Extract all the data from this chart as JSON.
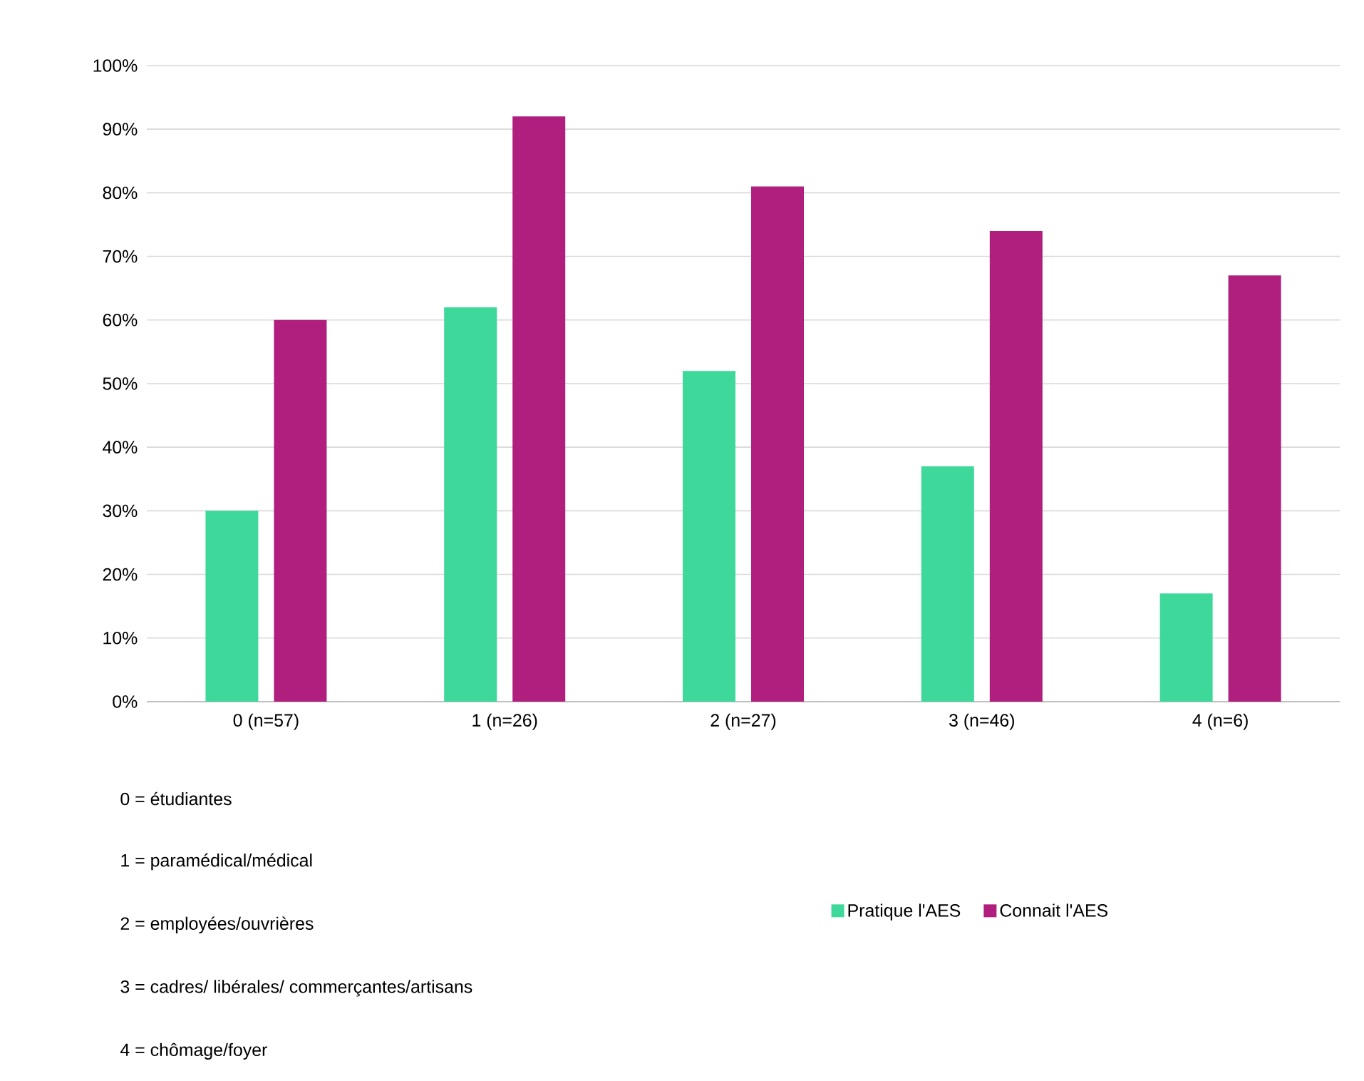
{
  "chart_data": {
    "type": "bar",
    "categories": [
      "0 (n=57)",
      "1 (n=26)",
      "2 (n=27)",
      "3 (n=46)",
      "4 (n=6)"
    ],
    "series": [
      {
        "name": "Pratique l'AES",
        "color": "#3dd89a",
        "values": [
          30,
          62,
          52,
          37,
          17
        ]
      },
      {
        "name": "Connait l'AES",
        "color": "#b01e7e",
        "values": [
          60,
          92,
          81,
          74,
          67
        ]
      }
    ],
    "ylim": [
      0,
      100
    ],
    "yticks": [
      {
        "value": 0,
        "label": "0%"
      },
      {
        "value": 10,
        "label": "10%"
      },
      {
        "value": 20,
        "label": "20%"
      },
      {
        "value": 30,
        "label": "30%"
      },
      {
        "value": 40,
        "label": "40%"
      },
      {
        "value": 50,
        "label": "50%"
      },
      {
        "value": 60,
        "label": "60%"
      },
      {
        "value": 70,
        "label": "70%"
      },
      {
        "value": 80,
        "label": "80%"
      },
      {
        "value": 90,
        "label": "90%"
      },
      {
        "value": 100,
        "label": "100%"
      }
    ],
    "grid": "y",
    "legend": "bottom right",
    "annotations": [
      "0 = étudiantes",
      "1 = paramédical/médical",
      "2 = employées/ouvrières",
      "3 = cadres/ libérales/ commerçantes/artisans",
      "4 = chômage/foyer"
    ]
  }
}
